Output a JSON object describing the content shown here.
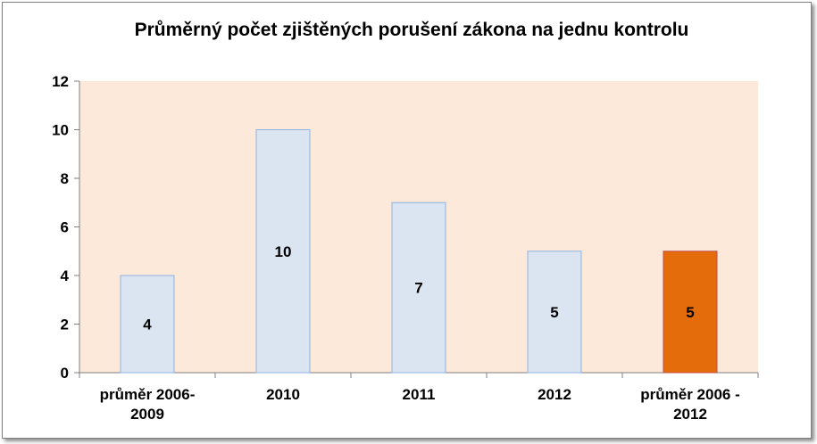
{
  "chart_data": {
    "type": "bar",
    "title": "Průměrný počet zjištěných porušení zákona na jednu kontrolu",
    "xlabel": "",
    "ylabel": "",
    "categories": [
      [
        "průměr 2006-",
        "2009"
      ],
      [
        "2010"
      ],
      [
        "2011"
      ],
      [
        "2012"
      ],
      [
        "průměr 2006 -",
        "2012"
      ]
    ],
    "values": [
      4,
      10,
      7,
      5,
      5
    ],
    "data_labels": [
      "4",
      "10",
      "7",
      "5",
      "5"
    ],
    "ylim": [
      0,
      12
    ],
    "yticks": [
      "0",
      "2",
      "4",
      "6",
      "8",
      "10",
      "12"
    ],
    "grid": false,
    "legend": "none",
    "colors": {
      "plot_background": "#fde9d9",
      "bar_fill": "#dbe5f1",
      "bar_stroke": "#8eb4e3",
      "highlight_fill": "#e46c0a",
      "highlight_stroke": "#c0504d",
      "axis": "#808080"
    },
    "highlight_index": 4
  }
}
